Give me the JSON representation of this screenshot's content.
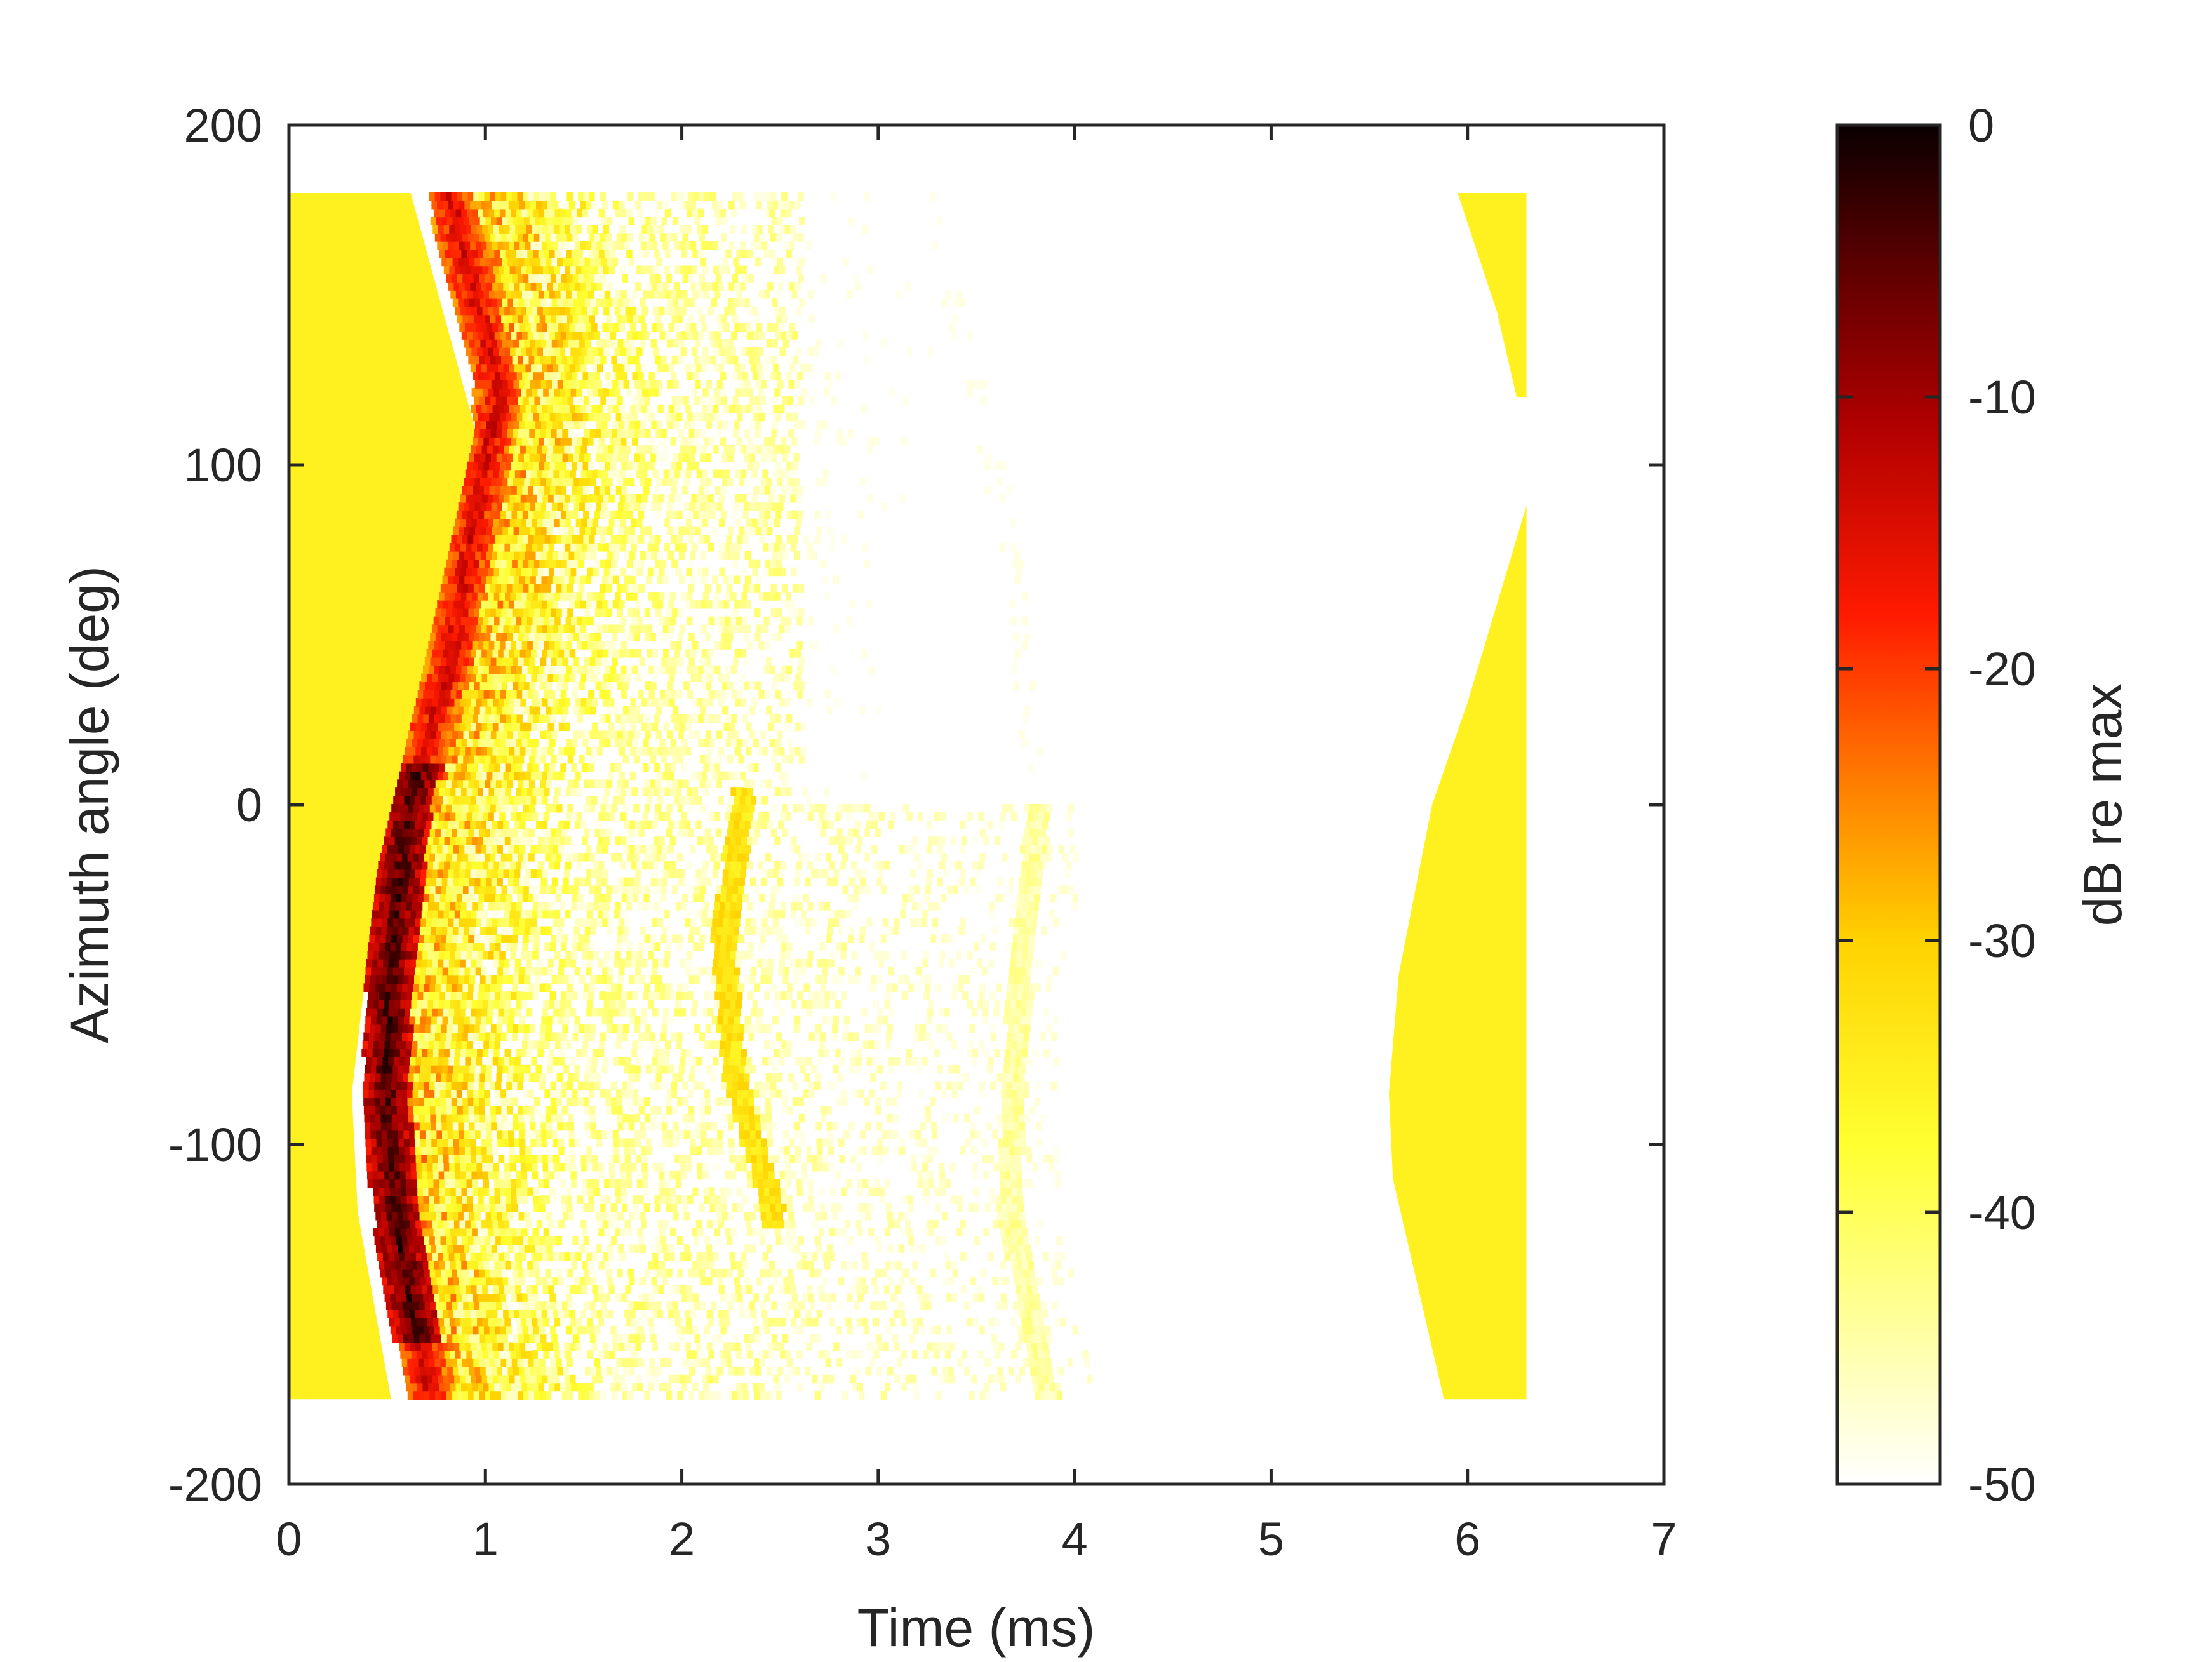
{
  "chart_data": {
    "type": "heatmap",
    "title": "",
    "xlabel": "Time (ms)",
    "ylabel": "Azimuth angle (deg)",
    "xlim": [
      0,
      7
    ],
    "ylim": [
      -200,
      200
    ],
    "x_ticks": [
      0,
      1,
      2,
      3,
      4,
      5,
      6,
      7
    ],
    "y_ticks": [
      -200,
      -100,
      0,
      100,
      200
    ],
    "grid": false,
    "data_extent": {
      "x": [
        0,
        6.3
      ],
      "y": [
        -175,
        180
      ]
    },
    "colorbar": {
      "label": "dB re max",
      "limits": [
        -50,
        0
      ],
      "ticks": [
        0,
        -10,
        -20,
        -30,
        -40,
        -50
      ],
      "colormap": "hot (reversed)",
      "colors": {
        "max": "#000000",
        "mid": "#ff0000",
        "low": "#ffff00",
        "min": "#ffffff"
      }
    },
    "features": [
      {
        "name": "direct-sound-wavefront",
        "peak_db": 0,
        "ridge": [
          {
            "t": 0.8,
            "az": 180
          },
          {
            "t": 1.05,
            "az": 120
          },
          {
            "t": 0.8,
            "az": 40
          },
          {
            "t": 0.6,
            "az": 0
          },
          {
            "t": 0.5,
            "az": -50
          },
          {
            "t": 0.48,
            "az": -90
          },
          {
            "t": 0.55,
            "az": -130
          },
          {
            "t": 0.7,
            "az": -175
          }
        ]
      },
      {
        "name": "pre-arrival-floor-region",
        "level_db": -35,
        "boundary": [
          {
            "t": 0.62,
            "az": 180
          },
          {
            "t": 0.95,
            "az": 110
          },
          {
            "t": 0.65,
            "az": 30
          },
          {
            "t": 0.45,
            "az": -20
          },
          {
            "t": 0.32,
            "az": -85
          },
          {
            "t": 0.35,
            "az": -120
          },
          {
            "t": 0.52,
            "az": -175
          }
        ]
      },
      {
        "name": "late-floor-region-top",
        "level_db": -35,
        "t_end": 6.3,
        "boundary": [
          {
            "t": 5.95,
            "az": 180
          },
          {
            "t": 6.15,
            "az": 145
          },
          {
            "t": 6.25,
            "az": 120
          }
        ]
      },
      {
        "name": "late-floor-region-bottom",
        "level_db": -35,
        "t_end": 6.3,
        "boundary": [
          {
            "t": 6.3,
            "az": 88
          },
          {
            "t": 6.0,
            "az": 30
          },
          {
            "t": 5.82,
            "az": 0
          },
          {
            "t": 5.65,
            "az": -50
          },
          {
            "t": 5.6,
            "az": -85
          },
          {
            "t": 5.62,
            "az": -110
          },
          {
            "t": 5.88,
            "az": -175
          }
        ]
      },
      {
        "name": "reflection-band",
        "peak_db": -30,
        "ridge": [
          {
            "t": 2.3,
            "az": 0
          },
          {
            "t": 2.2,
            "az": -40
          },
          {
            "t": 2.25,
            "az": -80
          },
          {
            "t": 2.45,
            "az": -120
          }
        ]
      },
      {
        "name": "late-reflection-band",
        "peak_db": -42,
        "ridge": [
          {
            "t": 3.2,
            "az": 180
          },
          {
            "t": 3.5,
            "az": 120
          },
          {
            "t": 3.7,
            "az": 60
          },
          {
            "t": 3.8,
            "az": 0
          },
          {
            "t": 3.7,
            "az": -60
          },
          {
            "t": 3.65,
            "az": -120
          },
          {
            "t": 3.85,
            "az": -175
          }
        ]
      }
    ]
  }
}
